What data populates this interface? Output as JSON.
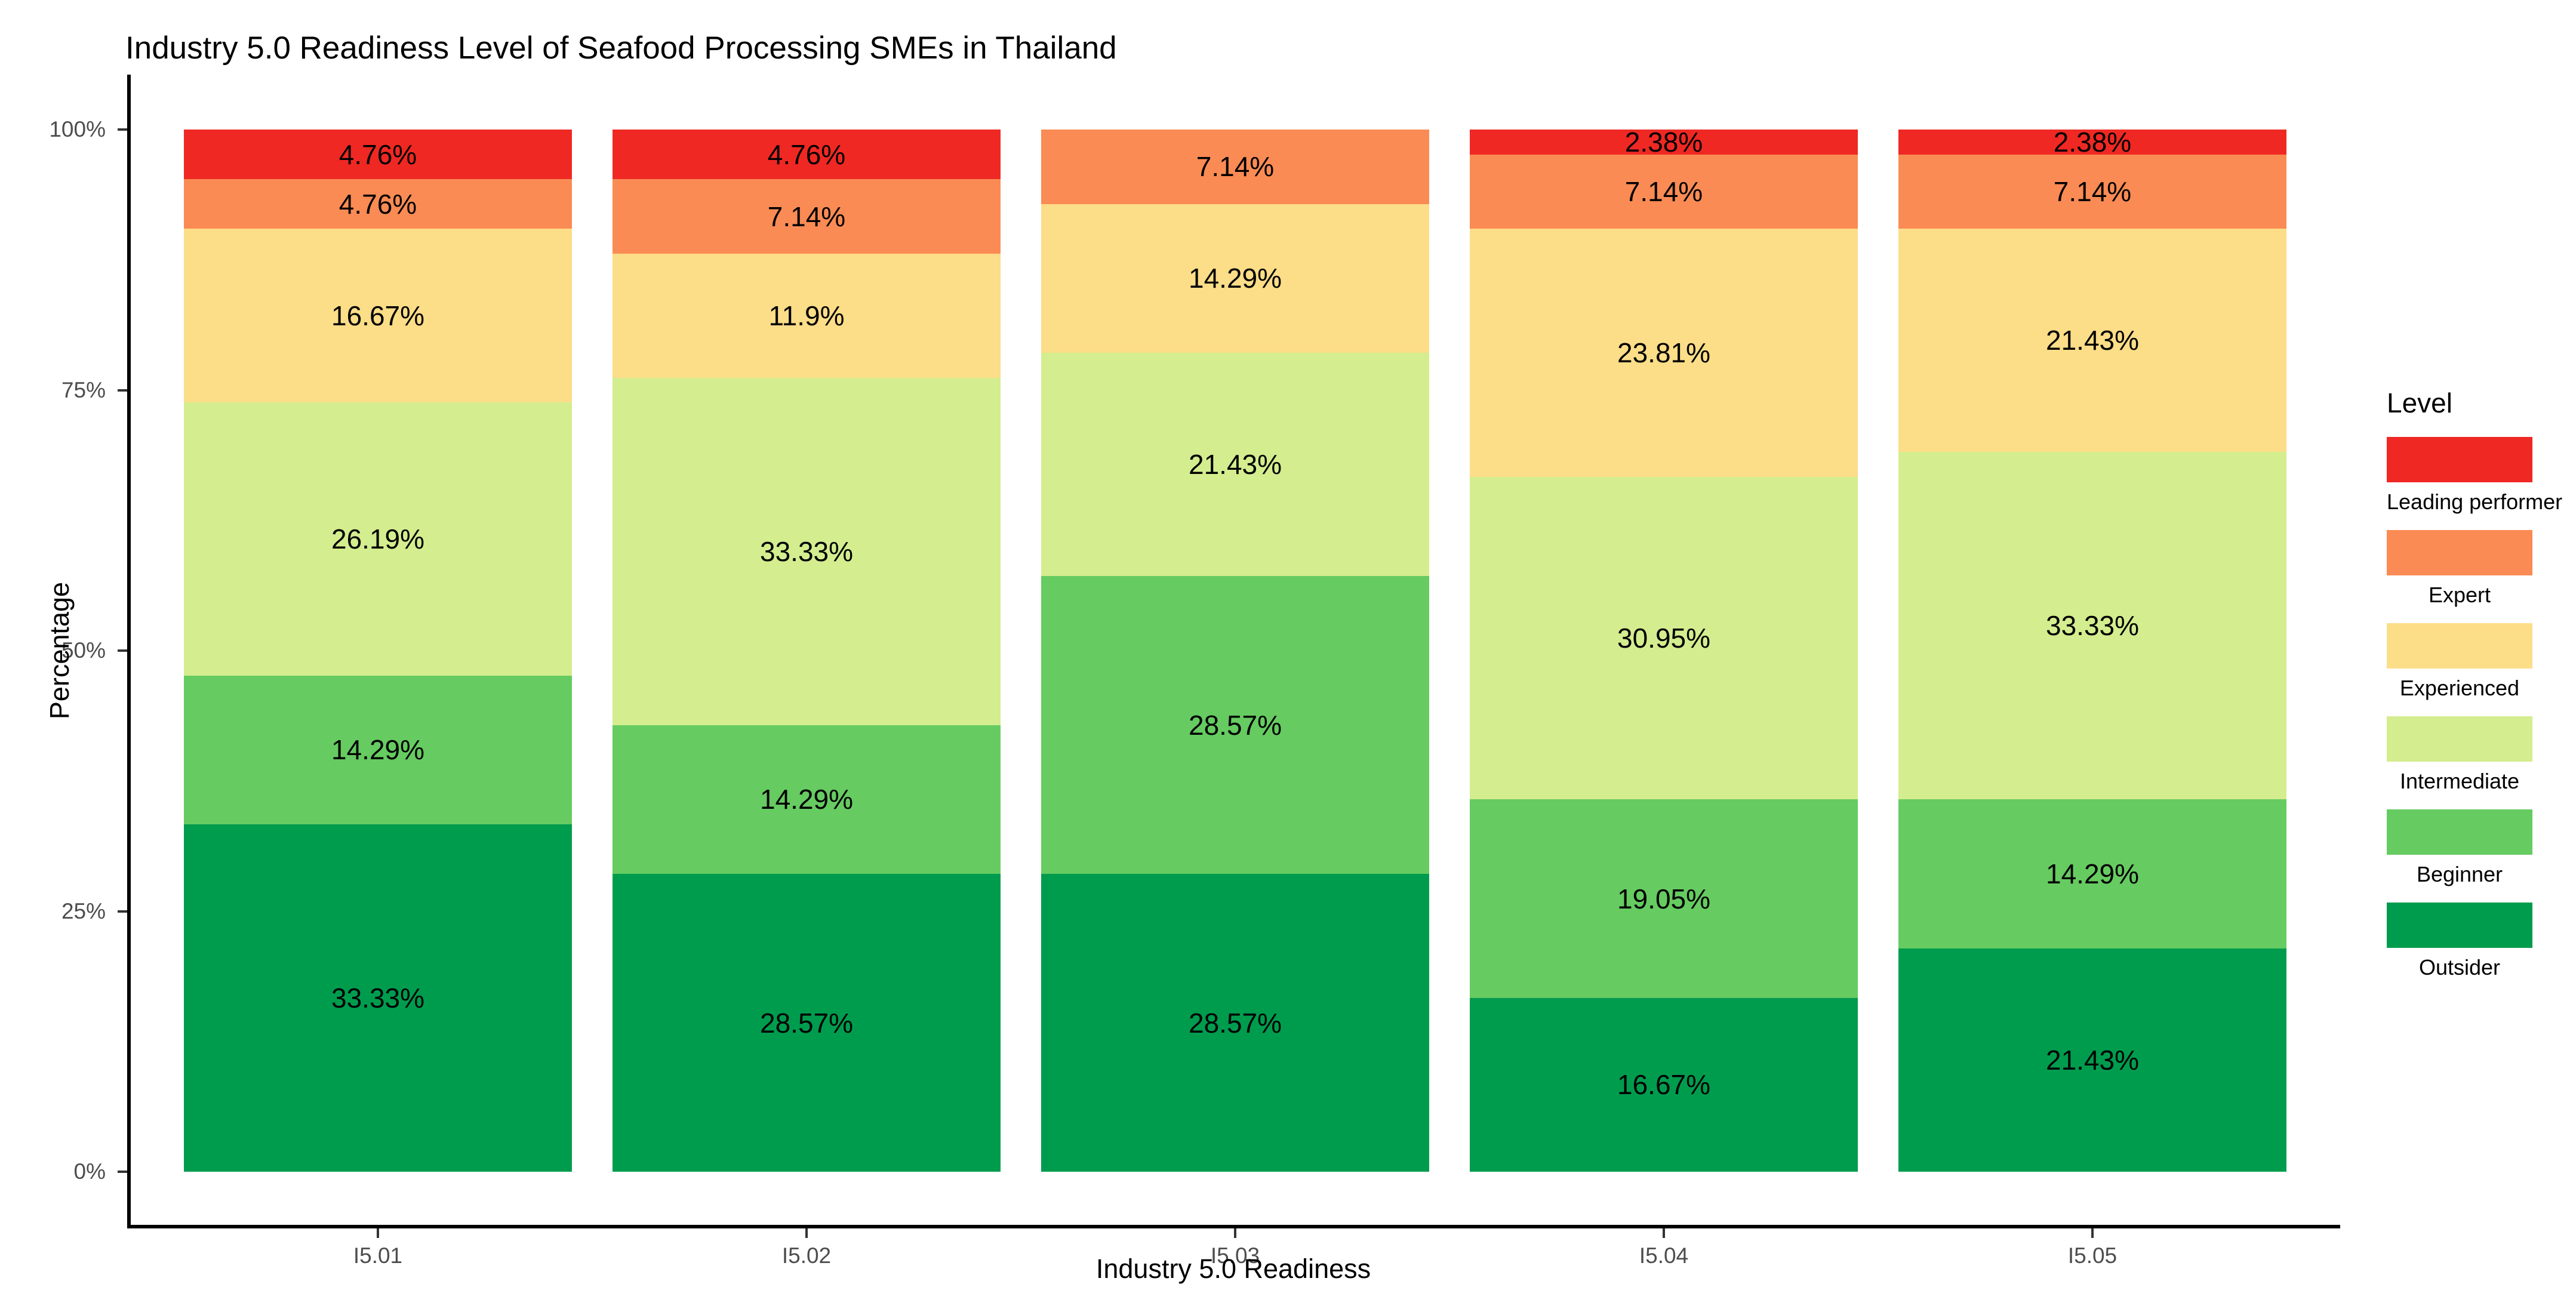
{
  "chart_data": {
    "type": "bar",
    "stacked": true,
    "title": "Industry 5.0 Readiness Level of Seafood Processing SMEs in Thailand",
    "xlabel": "Industry 5.0 Readiness",
    "ylabel": "Percentage",
    "categories": [
      "I5.01",
      "I5.02",
      "I5.03",
      "I5.04",
      "I5.05"
    ],
    "ylim": [
      0,
      100
    ],
    "grid": false,
    "y_ticks": [
      {
        "value": 0,
        "label": "0%"
      },
      {
        "value": 25,
        "label": "25%"
      },
      {
        "value": 50,
        "label": "50%"
      },
      {
        "value": 75,
        "label": "75%"
      },
      {
        "value": 100,
        "label": "100%"
      }
    ],
    "legend": {
      "title": "Level",
      "position": "right",
      "order_top_to_bottom": [
        "Leading performer",
        "Expert",
        "Experienced",
        "Intermediate",
        "Beginner",
        "Outsider"
      ]
    },
    "series": [
      {
        "name": "Outsider",
        "color": "#009C4E",
        "values": [
          33.33,
          28.57,
          28.57,
          16.67,
          21.43
        ],
        "labels": [
          "33.33%",
          "28.57%",
          "28.57%",
          "16.67%",
          "21.43%"
        ]
      },
      {
        "name": "Beginner",
        "color": "#66CB61",
        "values": [
          14.29,
          14.29,
          28.57,
          19.05,
          14.29
        ],
        "labels": [
          "14.29%",
          "14.29%",
          "28.57%",
          "19.05%",
          "14.29%"
        ]
      },
      {
        "name": "Intermediate",
        "color": "#D4ED8F",
        "values": [
          26.19,
          33.33,
          21.43,
          30.95,
          33.33
        ],
        "labels": [
          "26.19%",
          "33.33%",
          "21.43%",
          "30.95%",
          "33.33%"
        ]
      },
      {
        "name": "Experienced",
        "color": "#FCDD88",
        "values": [
          16.67,
          11.9,
          14.29,
          23.81,
          21.43
        ],
        "labels": [
          "16.67%",
          "11.9%",
          "14.29%",
          "23.81%",
          "21.43%"
        ]
      },
      {
        "name": "Expert",
        "color": "#FA8B54",
        "values": [
          4.76,
          7.14,
          7.14,
          7.14,
          7.14
        ],
        "labels": [
          "4.76%",
          "7.14%",
          "7.14%",
          "7.14%",
          "7.14%"
        ]
      },
      {
        "name": "Leading performer",
        "color": "#EF2823",
        "values": [
          4.76,
          4.76,
          0,
          2.38,
          2.38
        ],
        "labels": [
          "4.76%",
          "4.76%",
          "",
          "2.38%",
          "2.38%"
        ]
      }
    ],
    "colors": {
      "axis_line": "#000000",
      "tick_mark": "#333333",
      "tick_label": "#4D4D4D",
      "bar_label": "#000000",
      "background": "#FFFFFF"
    }
  }
}
